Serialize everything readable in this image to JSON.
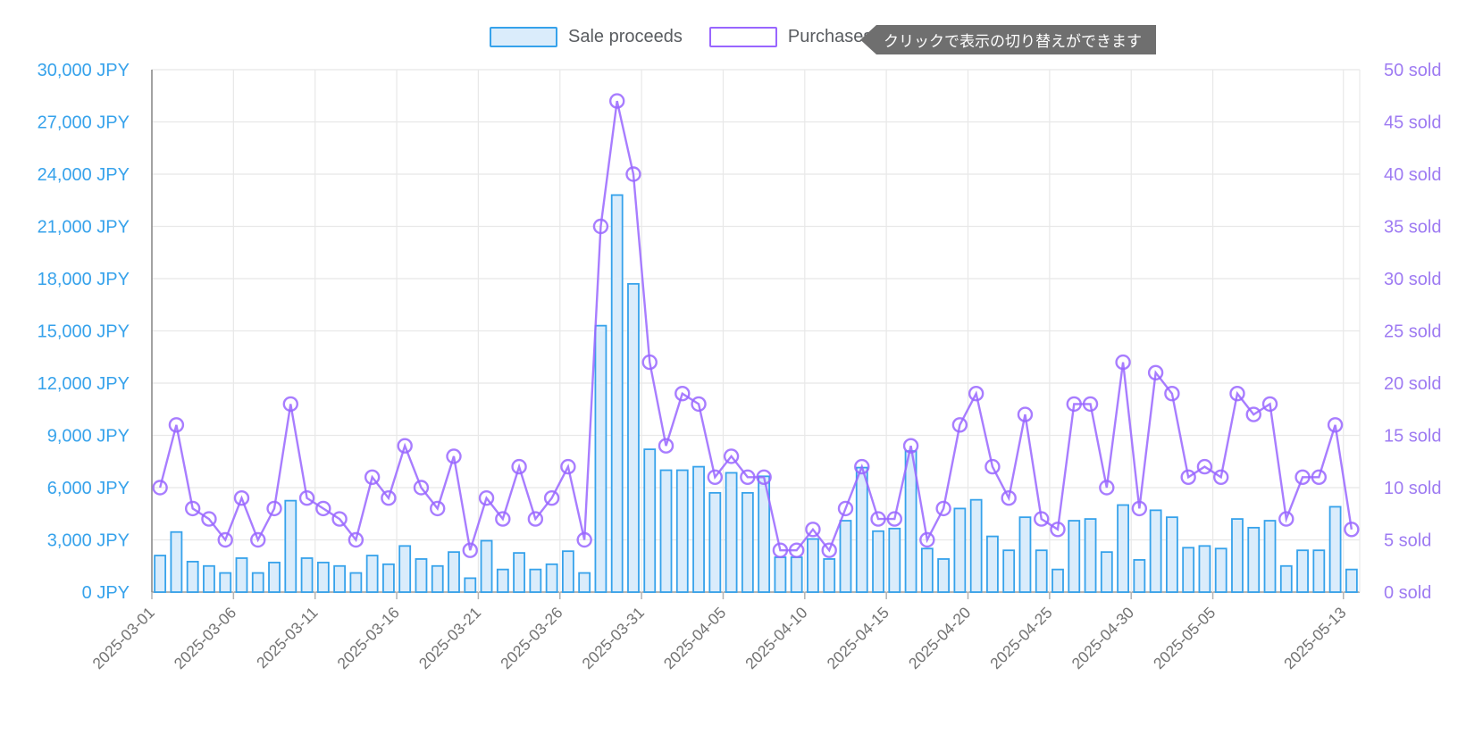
{
  "legend": {
    "sale_label": "Sale proceeds",
    "purchases_label": "Purchases"
  },
  "tooltip": {
    "text": "クリックで表示の切り替えができます"
  },
  "colors": {
    "blue": "#36A2EB",
    "blue_fill": "#DAECFB",
    "purple": "#9966FF",
    "left_axis_text": "#36A2EB",
    "right_axis_text": "#9E7BF2",
    "x_label_text": "#737373",
    "grid": "#E8E8E8",
    "axis_line": "#B3B3B3",
    "y_axis_border": "#8C8C8C",
    "legend_text": "#595C60",
    "tooltip_bg": "#6F6F6F",
    "tooltip_text": "#FFFFFF"
  },
  "chart_data": {
    "type": "bar+line",
    "series": [
      {
        "name": "Sale proceeds",
        "kind": "bar",
        "axis": "left",
        "values": [
          2100,
          3450,
          1750,
          1500,
          1100,
          1950,
          1100,
          1700,
          5250,
          1950,
          1700,
          1500,
          1100,
          2100,
          1600,
          2650,
          1900,
          1500,
          2300,
          800,
          2950,
          1300,
          2250,
          1300,
          1600,
          2350,
          1100,
          15300,
          22800,
          17700,
          8200,
          7000,
          7000,
          7200,
          5700,
          6850,
          5700,
          6650,
          2000,
          2000,
          3050,
          1900,
          4100,
          7150,
          3500,
          3650,
          8100,
          2500,
          1900,
          4800,
          5300,
          3200,
          2400,
          4300,
          2400,
          1300,
          4100,
          4200,
          2300,
          5000,
          1850,
          4700,
          4300,
          2550,
          2650,
          2500,
          4200,
          3700,
          4100,
          1500,
          2400,
          2400,
          4900,
          1300
        ]
      },
      {
        "name": "Purchases",
        "kind": "line",
        "axis": "right",
        "values": [
          10,
          16,
          8,
          7,
          5,
          9,
          5,
          8,
          18,
          9,
          8,
          7,
          5,
          11,
          9,
          14,
          10,
          8,
          13,
          4,
          9,
          7,
          12,
          7,
          9,
          12,
          5,
          35,
          47,
          40,
          22,
          14,
          19,
          18,
          11,
          13,
          11,
          11,
          4,
          4,
          6,
          4,
          8,
          12,
          7,
          7,
          14,
          5,
          8,
          16,
          19,
          12,
          9,
          17,
          7,
          6,
          18,
          18,
          10,
          22,
          8,
          21,
          19,
          11,
          12,
          11,
          19,
          17,
          18,
          7,
          11,
          11,
          16,
          6
        ]
      }
    ],
    "dates": [
      "2025-03-01",
      "2025-03-02",
      "2025-03-03",
      "2025-03-04",
      "2025-03-05",
      "2025-03-06",
      "2025-03-07",
      "2025-03-08",
      "2025-03-09",
      "2025-03-10",
      "2025-03-11",
      "2025-03-12",
      "2025-03-13",
      "2025-03-14",
      "2025-03-15",
      "2025-03-16",
      "2025-03-17",
      "2025-03-18",
      "2025-03-19",
      "2025-03-20",
      "2025-03-21",
      "2025-03-22",
      "2025-03-23",
      "2025-03-24",
      "2025-03-25",
      "2025-03-26",
      "2025-03-27",
      "2025-03-28",
      "2025-03-29",
      "2025-03-30",
      "2025-03-31",
      "2025-04-01",
      "2025-04-02",
      "2025-04-03",
      "2025-04-04",
      "2025-04-05",
      "2025-04-06",
      "2025-04-07",
      "2025-04-08",
      "2025-04-09",
      "2025-04-10",
      "2025-04-11",
      "2025-04-12",
      "2025-04-13",
      "2025-04-14",
      "2025-04-15",
      "2025-04-16",
      "2025-04-17",
      "2025-04-18",
      "2025-04-19",
      "2025-04-20",
      "2025-04-21",
      "2025-04-22",
      "2025-04-23",
      "2025-04-24",
      "2025-04-25",
      "2025-04-26",
      "2025-04-27",
      "2025-04-28",
      "2025-04-29",
      "2025-04-30",
      "2025-05-01",
      "2025-05-02",
      "2025-05-03",
      "2025-05-04",
      "2025-05-05",
      "2025-05-06",
      "2025-05-07",
      "2025-05-08",
      "2025-05-09",
      "2025-05-10",
      "2025-05-11",
      "2025-05-12",
      "2025-05-13"
    ],
    "x_tick_indices": [
      0,
      5,
      10,
      15,
      20,
      25,
      30,
      35,
      40,
      45,
      50,
      55,
      60,
      65,
      73
    ],
    "x_tick_labels": [
      "2025-03-01",
      "2025-03-06",
      "2025-03-11",
      "2025-03-16",
      "2025-03-21",
      "2025-03-26",
      "2025-03-31",
      "2025-04-05",
      "2025-04-10",
      "2025-04-15",
      "2025-04-20",
      "2025-04-25",
      "2025-04-30",
      "2025-05-05",
      "2025-05-13"
    ],
    "y_left": {
      "min": 0,
      "max": 30000,
      "step": 3000,
      "suffix": " JPY",
      "tick_labels": [
        "0 JPY",
        "3,000 JPY",
        "6,000 JPY",
        "9,000 JPY",
        "12,000 JPY",
        "15,000 JPY",
        "18,000 JPY",
        "21,000 JPY",
        "24,000 JPY",
        "27,000 JPY",
        "30,000 JPY"
      ]
    },
    "y_right": {
      "min": 0,
      "max": 50,
      "step": 5,
      "suffix": " sold",
      "tick_labels": [
        "0 sold",
        "5 sold",
        "10 sold",
        "15 sold",
        "20 sold",
        "25 sold",
        "30 sold",
        "35 sold",
        "40 sold",
        "45 sold",
        "50 sold"
      ]
    },
    "grid": true,
    "legend_position": "top"
  }
}
